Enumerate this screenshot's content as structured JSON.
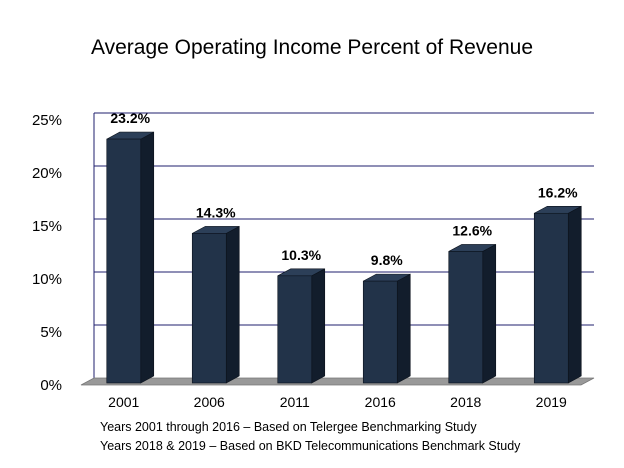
{
  "chart_data": {
    "type": "bar",
    "title": "Average Operating Income Percent of Revenue",
    "categories": [
      "2001",
      "2006",
      "2011",
      "2016",
      "2018",
      "2019"
    ],
    "values": [
      23.2,
      14.3,
      10.3,
      9.8,
      12.6,
      16.2
    ],
    "data_labels": [
      "23.2%",
      "14.3%",
      "10.3%",
      "9.8%",
      "12.6%",
      "16.2%"
    ],
    "yticks": [
      "0%",
      "5%",
      "10%",
      "15%",
      "20%",
      "25%"
    ],
    "ylim": [
      0,
      25
    ],
    "grid": true,
    "legend": "none",
    "colors": {
      "bar_front": "#223349",
      "bar_side": "#121d2c",
      "bar_top": "#2c3f58",
      "floor": "#999999",
      "grid": "#1f1f6e"
    }
  },
  "notes": [
    "Years 2001 through 2016 – Based on Telergee Benchmarking Study",
    "Years 2018 & 2019 – Based on BKD Telecommunications Benchmark Study"
  ]
}
